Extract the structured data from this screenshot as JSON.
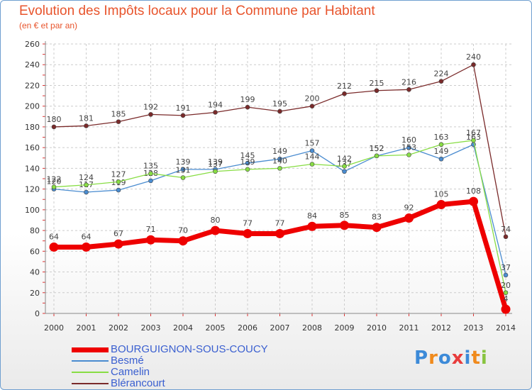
{
  "header": {
    "title": "Evolution des Impôts locaux pour la Commune par Habitant",
    "subtitle": "(en € et par an)"
  },
  "colors": {
    "title": "#e8542c",
    "bourguignon": "#ee0000",
    "besme": "#4a8cd0",
    "camelin": "#88dd44",
    "blerancourt": "#7a2a2a"
  },
  "chart_data": {
    "type": "line",
    "title": "Evolution des Impôts locaux pour la Commune par Habitant",
    "subtitle": "(en € et par an)",
    "xlabel": "",
    "ylabel": "",
    "ylim": [
      0,
      260
    ],
    "yticks": [
      0,
      20,
      40,
      60,
      80,
      100,
      120,
      140,
      160,
      180,
      200,
      220,
      240,
      260
    ],
    "grid": true,
    "categories": [
      "2000",
      "2001",
      "2002",
      "2003",
      "2004",
      "2005",
      "2006",
      "2007",
      "2008",
      "2009",
      "2010",
      "2011",
      "2012",
      "2013",
      "2014"
    ],
    "series": [
      {
        "name": "BOURGUIGNON-SOUS-COUCY",
        "color": "#ee0000",
        "values": [
          64,
          64,
          67,
          71,
          70,
          80,
          77,
          77,
          84,
          85,
          83,
          92,
          105,
          108,
          4
        ]
      },
      {
        "name": "Besmé",
        "color": "#4a8cd0",
        "values": [
          120,
          117,
          119,
          128,
          139,
          139,
          145,
          149,
          157,
          137,
          152,
          160,
          149,
          163,
          37
        ]
      },
      {
        "name": "Camelin",
        "color": "#88dd44",
        "values": [
          122,
          124,
          127,
          135,
          131,
          137,
          139,
          140,
          144,
          142,
          152,
          153,
          163,
          167,
          20
        ]
      },
      {
        "name": "Blérancourt",
        "color": "#7a2a2a",
        "values": [
          180,
          181,
          185,
          192,
          191,
          194,
          199,
          195,
          200,
          212,
          215,
          216,
          224,
          240,
          74
        ]
      }
    ]
  },
  "legend": {
    "items": [
      {
        "label": "BOURGUIGNON-SOUS-COUCY",
        "color": "#ee0000"
      },
      {
        "label": "Besmé",
        "color": "#4a8cd0"
      },
      {
        "label": "Camelin",
        "color": "#88dd44"
      },
      {
        "label": "Blérancourt",
        "color": "#7a2a2a"
      }
    ]
  },
  "logo": {
    "letters": [
      "P",
      "r",
      "o",
      "x",
      "i",
      "t",
      "i"
    ],
    "colors": [
      "#3c8ad8",
      "#f08a1c",
      "#3c8ad8",
      "#e83c3c",
      "#3c8ad8",
      "#f08a1c",
      "#88c440"
    ]
  }
}
